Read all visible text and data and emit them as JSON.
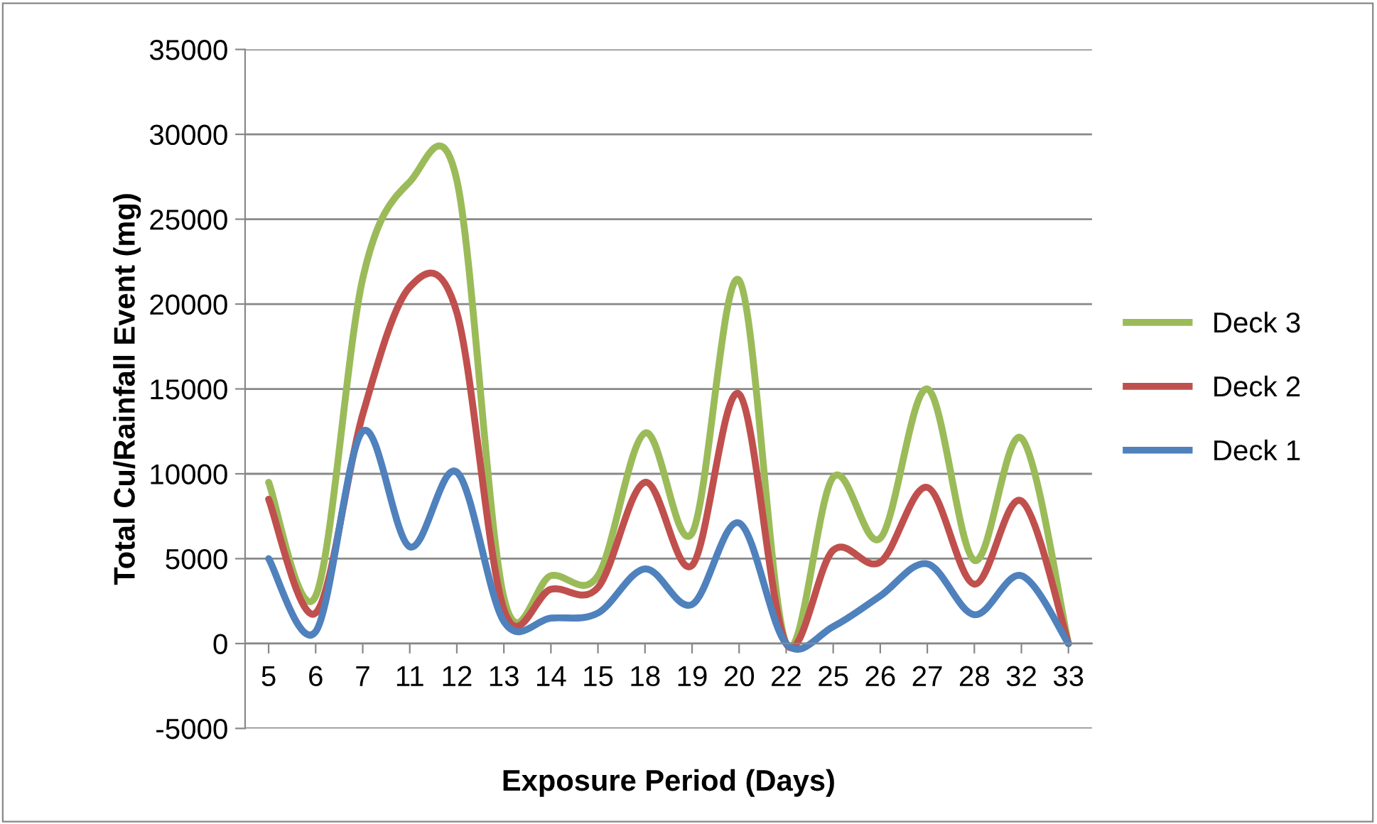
{
  "chart_data": {
    "type": "line",
    "xlabel": "Exposure Period (Days)",
    "ylabel": "Total Cu/Rainfall Event (mg)",
    "categories": [
      "5",
      "6",
      "7",
      "11",
      "12",
      "13",
      "14",
      "15",
      "18",
      "19",
      "20",
      "22",
      "25",
      "26",
      "27",
      "28",
      "32",
      "33"
    ],
    "series": [
      {
        "name": "Deck 3",
        "color": "#9bbb59",
        "values": [
          9500,
          2800,
          21500,
          27200,
          27300,
          2700,
          4000,
          4000,
          12400,
          6500,
          21400,
          0,
          9800,
          6200,
          15000,
          4900,
          12100,
          0
        ]
      },
      {
        "name": "Deck 2",
        "color": "#c0504d",
        "values": [
          8500,
          1800,
          13500,
          21000,
          19500,
          2000,
          3200,
          3300,
          9500,
          4600,
          14700,
          0,
          5500,
          4800,
          9200,
          3500,
          8400,
          0
        ]
      },
      {
        "name": "Deck 1",
        "color": "#4f81bd",
        "values": [
          5000,
          700,
          12500,
          5700,
          10100,
          1300,
          1500,
          1800,
          4400,
          2300,
          7100,
          0,
          1000,
          2800,
          4700,
          1700,
          4000,
          0
        ]
      }
    ],
    "ylim": [
      -5000,
      35000
    ],
    "yticks": [
      -5000,
      0,
      5000,
      10000,
      15000,
      20000,
      25000,
      30000,
      35000
    ],
    "grid": "y",
    "legend": "right",
    "marker": "none",
    "line_style": "solid"
  }
}
